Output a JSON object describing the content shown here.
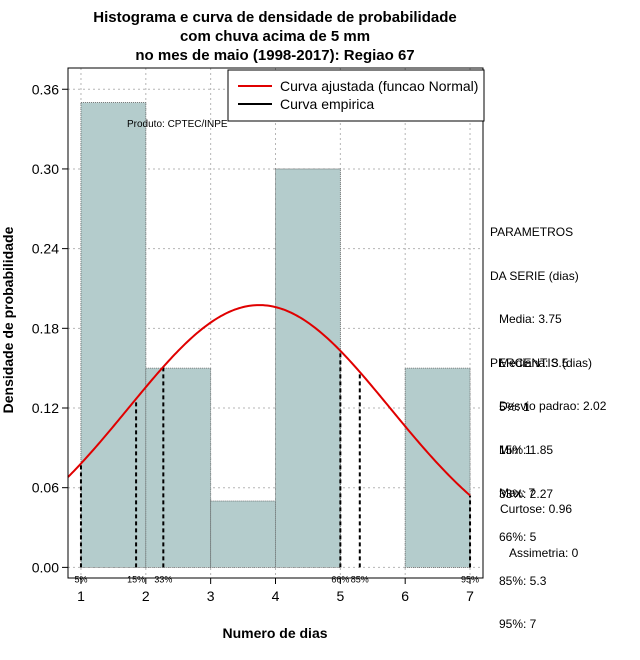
{
  "chart_data": {
    "type": "histogram",
    "title": [
      "Histograma e curva de densidade de probabilidade",
      "com chuva acima de 5 mm",
      "no mes de maio (1998-2017): Regiao 67"
    ],
    "xlabel": "Numero de dias",
    "ylabel": "Densidade de probabilidade",
    "xlim": [
      0.8,
      7.2
    ],
    "ylim": [
      -0.008,
      0.376
    ],
    "x_ticks": [
      1,
      2,
      3,
      4,
      5,
      6,
      7
    ],
    "y_ticks": [
      0.0,
      0.06,
      0.12,
      0.18,
      0.24,
      0.3,
      0.36
    ],
    "y_tick_labels": [
      "0.00",
      "0.06",
      "0.12",
      "0.18",
      "0.24",
      "0.30",
      "0.36"
    ],
    "grid": true,
    "bins": [
      {
        "start": 1,
        "end": 2,
        "density": 0.35
      },
      {
        "start": 2,
        "end": 3,
        "density": 0.15
      },
      {
        "start": 3,
        "end": 4,
        "density": 0.05
      },
      {
        "start": 4,
        "end": 5,
        "density": 0.3
      },
      {
        "start": 5,
        "end": 6,
        "density": 0.0
      },
      {
        "start": 6,
        "end": 7,
        "density": 0.15
      }
    ],
    "fitted_curve": {
      "name": "Curva ajustada (funcao Normal)",
      "distribution": "normal",
      "mean": 3.75,
      "sd": 2.02,
      "color": "#e00000"
    },
    "empirical_curve": {
      "name": "Curva empirica",
      "color": "#000000"
    },
    "legend": {
      "position": "top-right",
      "entries": [
        "Curva ajustada (funcao Normal)",
        "Curva empirica"
      ]
    },
    "percentile_markers": [
      {
        "label": "5%",
        "x": 1
      },
      {
        "label": "15%",
        "x": 1.85
      },
      {
        "label": "33%",
        "x": 2.27
      },
      {
        "label": "66%",
        "x": 5
      },
      {
        "label": "85%",
        "x": 5.3
      },
      {
        "label": "95%",
        "x": 7
      }
    ],
    "annotation": "Produto: CPTEC/INPE",
    "colors": {
      "bar_fill": "#b4cccc",
      "bar_stroke": "#555555",
      "grid": "#b5b5b5"
    }
  },
  "parametros": {
    "title": [
      "PARAMETROS",
      "DA SERIE (dias)"
    ],
    "lines": [
      "Media: 3.75",
      "Mediana: 3.5",
      "Desvio padrao: 2.02",
      "Min: 1",
      "Max: 7"
    ]
  },
  "percentis": {
    "title": "PERCENTIS (dias)",
    "lines": [
      "5%: 1",
      "15%: 1.85",
      "33%: 2.27",
      "66%: 5",
      "85%: 5.3",
      "95%: 7"
    ]
  },
  "moments": {
    "curtose": "Curtose: 0.96",
    "assimetria": "Assimetria: 0"
  }
}
